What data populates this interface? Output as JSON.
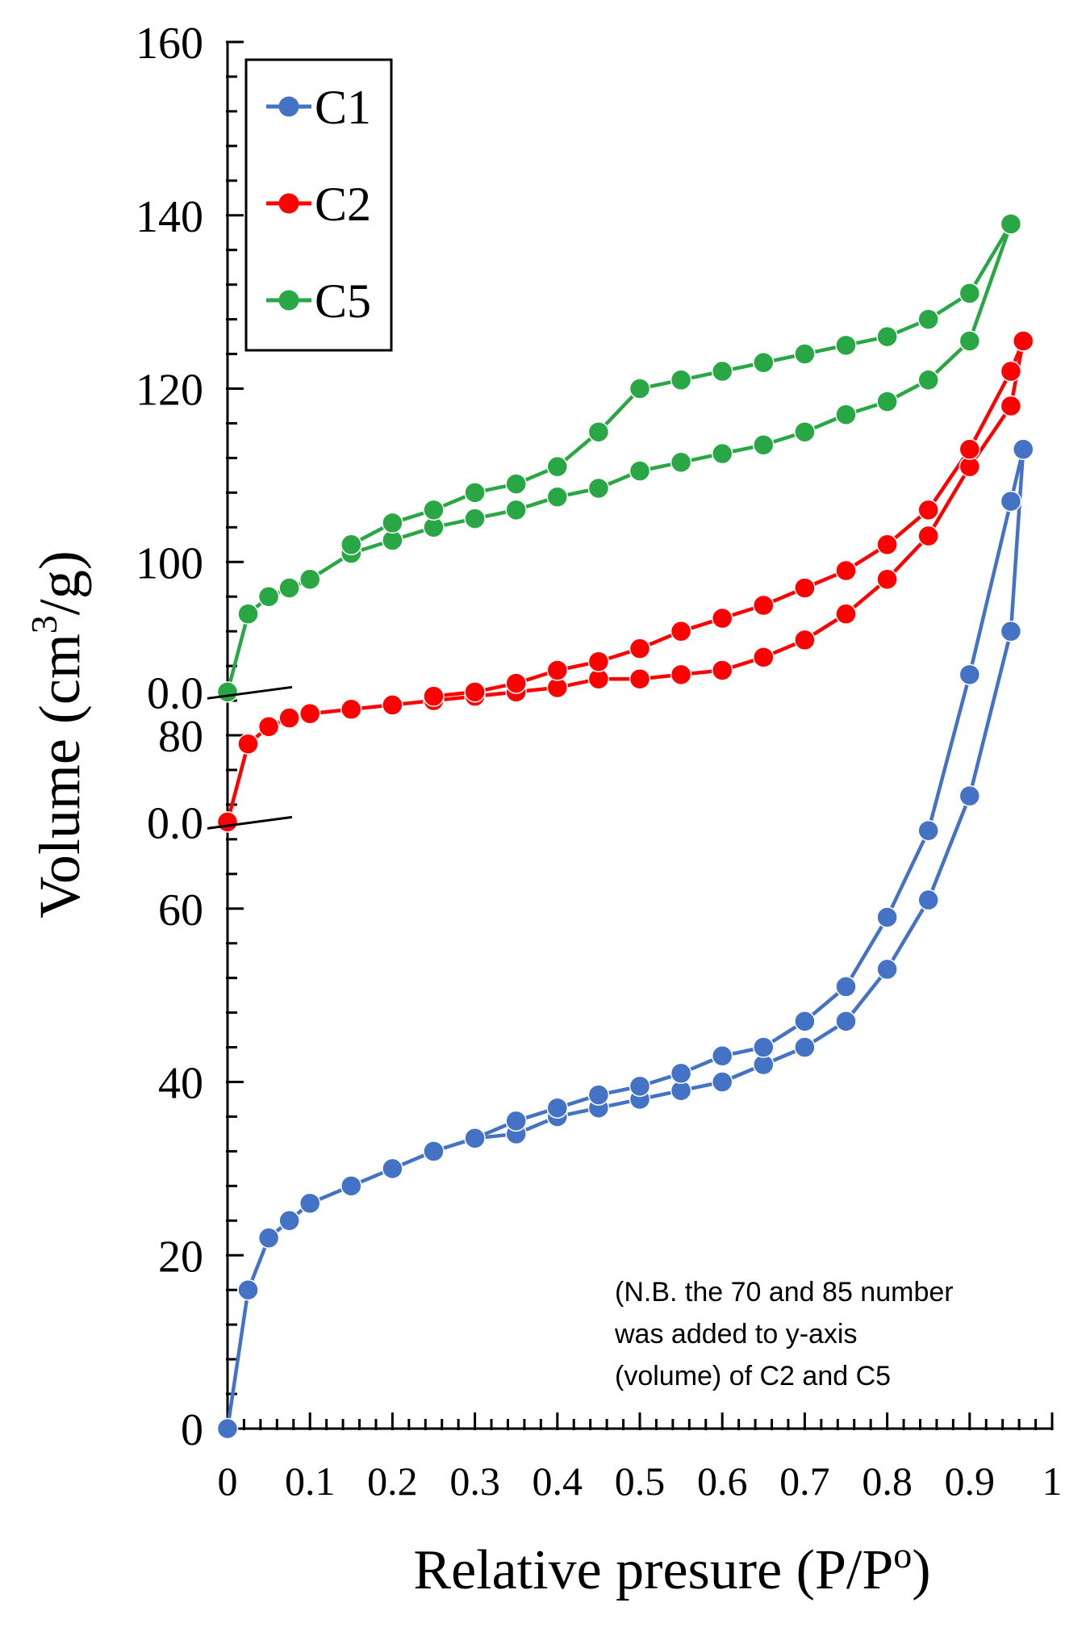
{
  "chart_data": {
    "type": "line",
    "title": "",
    "xlabel": "Relative presure (P/P",
    "xlabel_sup": "o",
    "xlabel_end": ")",
    "ylabel": "Volume (cm",
    "ylabel_sup": "3",
    "ylabel_end": "/g)",
    "xlim": [
      0,
      1
    ],
    "ylim": [
      0,
      160
    ],
    "x_ticks": [
      "0",
      "0.1",
      "0.2",
      "0.3",
      "0.4",
      "0.5",
      "0.6",
      "0.7",
      "0.8",
      "0.9",
      "1"
    ],
    "y_ticks": [
      "0",
      "20",
      "40",
      "60",
      "80",
      "100",
      "120",
      "140",
      "160"
    ],
    "offset_markers": [
      {
        "label": "0.0",
        "series": "C2",
        "y": 70
      },
      {
        "label": "0.0",
        "series": "C5",
        "y": 85
      }
    ],
    "legend_position": "top-left",
    "annotation": [
      "(N.B. the 70 and 85 number",
      "was added to y-axis",
      "(volume)  of C2 and C5"
    ],
    "series": [
      {
        "name": "C1",
        "color": "#4472C4",
        "adsorption": {
          "x": [
            0,
            0.025,
            0.05,
            0.075,
            0.1,
            0.15,
            0.2,
            0.25,
            0.3,
            0.35,
            0.4,
            0.45,
            0.5,
            0.55,
            0.6,
            0.65,
            0.7,
            0.75,
            0.8,
            0.85,
            0.9,
            0.95,
            0.965
          ],
          "y": [
            0,
            16,
            22,
            24,
            26,
            28,
            30,
            32,
            33.5,
            34,
            36,
            37,
            38,
            39,
            40,
            42,
            44,
            47,
            53,
            61,
            73,
            92,
            113
          ]
        },
        "desorption": {
          "x": [
            0.965,
            0.95,
            0.9,
            0.85,
            0.8,
            0.75,
            0.7,
            0.65,
            0.6,
            0.55,
            0.5,
            0.45,
            0.4,
            0.35,
            0.3
          ],
          "y": [
            113,
            107,
            87,
            69,
            59,
            51,
            47,
            44,
            43,
            41,
            39.5,
            38.5,
            37,
            35.5,
            33.5
          ]
        }
      },
      {
        "name": "C2",
        "color": "#FF0000",
        "adsorption": {
          "x": [
            0,
            0.025,
            0.05,
            0.075,
            0.1,
            0.15,
            0.2,
            0.25,
            0.3,
            0.35,
            0.4,
            0.45,
            0.5,
            0.55,
            0.6,
            0.65,
            0.7,
            0.75,
            0.8,
            0.85,
            0.9,
            0.95,
            0.965
          ],
          "y": [
            70,
            79,
            81,
            82,
            82.5,
            83,
            83.5,
            84,
            84.5,
            85,
            85.5,
            86.5,
            86.5,
            87,
            87.5,
            89,
            91,
            94,
            98,
            103,
            111,
            118,
            125.5
          ]
        },
        "desorption": {
          "x": [
            0.965,
            0.95,
            0.9,
            0.85,
            0.8,
            0.75,
            0.7,
            0.65,
            0.6,
            0.55,
            0.5,
            0.45,
            0.4,
            0.35,
            0.3,
            0.25
          ],
          "y": [
            125.5,
            122,
            113,
            106,
            102,
            99,
            97,
            95,
            93.5,
            92,
            90,
            88.5,
            87.5,
            86,
            85,
            84.5
          ]
        }
      },
      {
        "name": "C5",
        "color": "#29A745",
        "adsorption": {
          "x": [
            0,
            0.025,
            0.05,
            0.075,
            0.1,
            0.15,
            0.2,
            0.25,
            0.3,
            0.35,
            0.4,
            0.45,
            0.5,
            0.55,
            0.6,
            0.65,
            0.7,
            0.75,
            0.8,
            0.85,
            0.9,
            0.95
          ],
          "y": [
            85,
            94,
            96,
            97,
            98,
            101,
            102.5,
            104,
            105,
            106,
            107.5,
            108.5,
            110.5,
            111.5,
            112.5,
            113.5,
            115,
            117,
            118.5,
            121,
            125.5,
            139
          ]
        },
        "desorption": {
          "x": [
            0.95,
            0.9,
            0.85,
            0.8,
            0.75,
            0.7,
            0.65,
            0.6,
            0.55,
            0.5,
            0.45,
            0.4,
            0.35,
            0.3,
            0.25,
            0.2,
            0.15
          ],
          "y": [
            139,
            131,
            128,
            126,
            125,
            124,
            123,
            122,
            121,
            120,
            115,
            111,
            109,
            108,
            106,
            104.5,
            102
          ]
        }
      }
    ]
  }
}
